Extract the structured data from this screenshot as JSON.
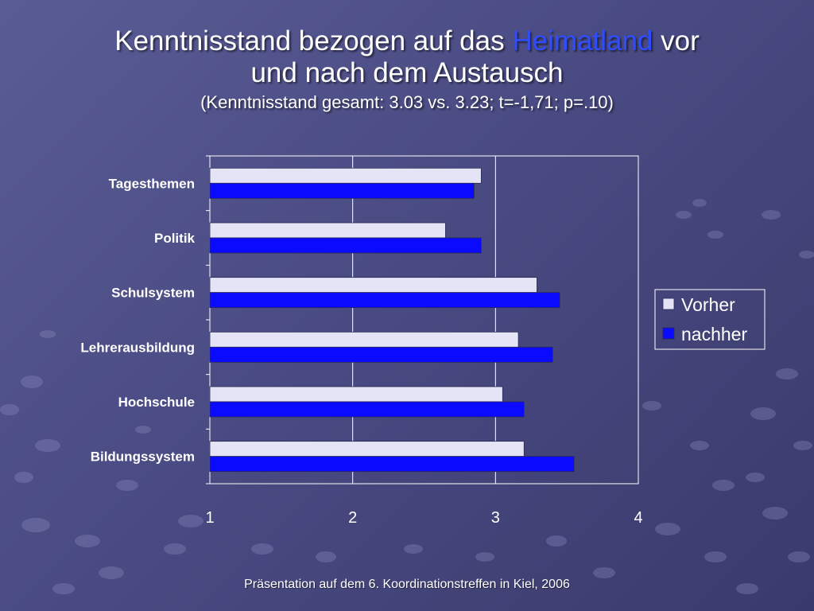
{
  "slide": {
    "title_line1_part1": "Kenntnisstand bezogen auf das",
    "title_accent": "Heimatland",
    "title_line1_part2": "vor",
    "title_line2": "und nach dem Austausch",
    "subtitle": "(Kenntnisstand gesamt: 3.03 vs. 3.23; t=-1,71; p=.10)",
    "footer": "Präsentation auf dem 6. Koordinationstreffen in Kiel, 2006"
  },
  "colors": {
    "vorher": "#e4e4f6",
    "nachher": "#0a0aff",
    "accent": "#2f4dff",
    "axis": "#ffffff"
  },
  "chart_data": {
    "type": "bar",
    "orientation": "horizontal",
    "categories": [
      "Tagesthemen",
      "Politik",
      "Schulsystem",
      "Lehrerausbildung",
      "Hochschule",
      "Bildungssystem"
    ],
    "series": [
      {
        "name": "Vorher",
        "values": [
          2.9,
          2.65,
          3.29,
          3.16,
          3.05,
          3.2
        ]
      },
      {
        "name": "nachher",
        "values": [
          2.85,
          2.9,
          3.45,
          3.4,
          3.2,
          3.55
        ]
      }
    ],
    "x_ticks": [
      "1",
      "2",
      "3",
      "4"
    ],
    "xlim": [
      1,
      4
    ],
    "grid": true,
    "legend_position": "right"
  }
}
